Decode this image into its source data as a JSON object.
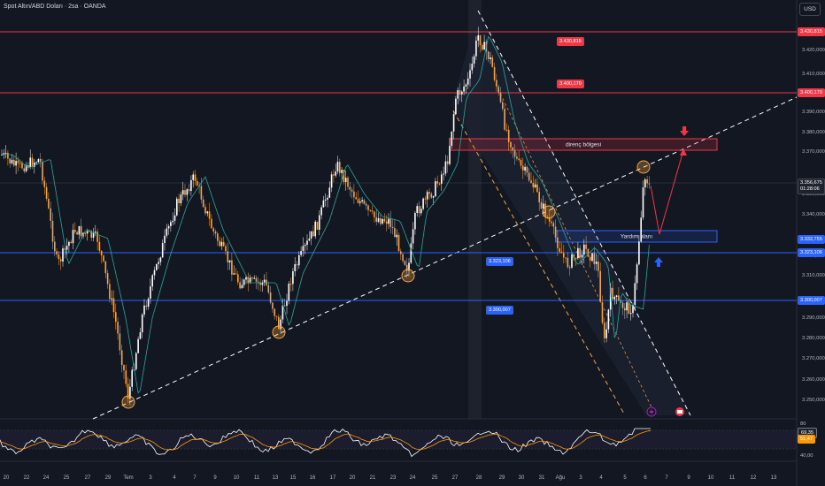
{
  "header": {
    "title": "Spot Altın/ABD Doları · 2sa · OANDA",
    "currency_button": "USD"
  },
  "price_axis": {
    "ticks": [
      "3.420,000",
      "3.410,000",
      "3.390,000",
      "3.380,000",
      "3.370,000",
      "3.350,000",
      "3.340,000",
      "3.320,000",
      "3.310,000",
      "3.290,000",
      "3.280,000",
      "3.270,000",
      "3.260,000",
      "3.250,000"
    ]
  },
  "price_tags": {
    "r1": "3.430,815",
    "r2": "3.400,170",
    "current_price": "3.356,675",
    "countdown": "01:28:06",
    "ma_value": "3.332,755",
    "s1": "3.323,106",
    "s2": "3.300,007"
  },
  "chart_labels": {
    "resistance_zone": "direnç bölgesi",
    "support_zone": "Yardım alanı",
    "r1_inline": "3.430,815",
    "r2_inline": "3.400,170",
    "s1_inline": "3.323,106",
    "s2_inline": "3.300,007"
  },
  "time_axis": {
    "labels": [
      "20",
      "22",
      "24",
      "25",
      "27",
      "29",
      "Tem",
      "3",
      "4",
      "7",
      "9",
      "10",
      "11",
      "13",
      "15",
      "16",
      "17",
      "20",
      "21",
      "23",
      "24",
      "25",
      "27",
      "28",
      "29",
      "30",
      "31",
      "Ağu",
      "3",
      "4",
      "5",
      "6",
      "7",
      "9",
      "10",
      "11",
      "12",
      "13"
    ]
  },
  "rsi": {
    "ticks": [
      "80",
      "60,00",
      "40,00"
    ],
    "value": "69,35",
    "ma": "51,47"
  },
  "colors": {
    "background": "#131722",
    "resistance": "#f23645",
    "support": "#2962ff",
    "bull": "#ffffff",
    "bear": "#f7a440",
    "ma": "#26a69a",
    "rsi": "#ffffff",
    "rsi_ma": "#ff9800"
  },
  "icons": {
    "arrow_down": "arrow-down-icon",
    "arrow_up": "arrow-up-icon",
    "flash": "flash-icon",
    "calendar": "calendar-icon"
  }
}
